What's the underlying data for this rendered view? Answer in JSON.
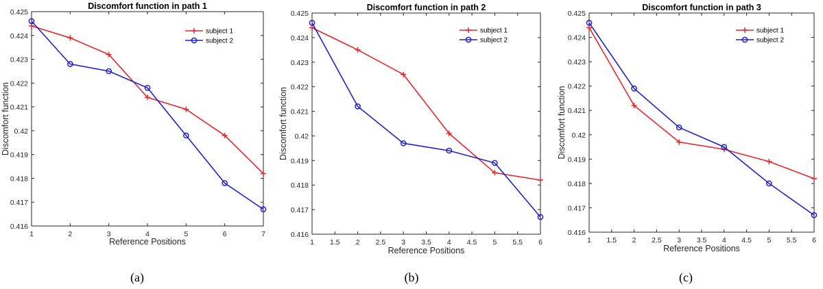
{
  "chart_data": [
    {
      "type": "line",
      "title": "Discomfort function in path 1",
      "xlabel": "Reference Positions",
      "ylabel": "Discomfort function",
      "caption": "(a)",
      "xlim": [
        1,
        7
      ],
      "ylim": [
        0.416,
        0.425
      ],
      "xticks": [
        "1",
        "2",
        "3",
        "4",
        "5",
        "6",
        "7"
      ],
      "yticks": [
        "0.416",
        "0.417",
        "0.418",
        "0.419",
        "0.42",
        "0.421",
        "0.422",
        "0.423",
        "0.424",
        "0.425"
      ],
      "x": [
        1,
        2,
        3,
        4,
        5,
        6,
        7
      ],
      "legend_position": "top-right",
      "series": [
        {
          "name": "subject 1",
          "color": "#e8252b",
          "marker": "plus",
          "values": [
            0.4244,
            0.4239,
            0.4232,
            0.4214,
            0.4209,
            0.4198,
            0.4182
          ]
        },
        {
          "name": "subject 2",
          "color": "#1f1fd0",
          "marker": "circle",
          "values": [
            0.4246,
            0.4228,
            0.4225,
            0.4218,
            0.4198,
            0.4178,
            0.4167
          ]
        }
      ]
    },
    {
      "type": "line",
      "title": "Discomfort function in path 2",
      "xlabel": "Reference Positions",
      "ylabel": "Discomfort function",
      "caption": "(b)",
      "xlim": [
        1,
        6
      ],
      "ylim": [
        0.416,
        0.425
      ],
      "xticks": [
        "1",
        "1.5",
        "2",
        "2.5",
        "3",
        "3.5",
        "4",
        "4.5",
        "5",
        "5.5",
        "6"
      ],
      "yticks": [
        "0.416",
        "0.417",
        "0.418",
        "0.419",
        "0.42",
        "0.421",
        "0.422",
        "0.423",
        "0.424",
        "0.425"
      ],
      "x": [
        1,
        2,
        3,
        4,
        5,
        6
      ],
      "legend_position": "top-right",
      "series": [
        {
          "name": "subject 1",
          "color": "#e8252b",
          "marker": "plus",
          "values": [
            0.4244,
            0.4235,
            0.4225,
            0.4201,
            0.4185,
            0.4182
          ]
        },
        {
          "name": "subject 2",
          "color": "#1f1fd0",
          "marker": "circle",
          "values": [
            0.4246,
            0.4212,
            0.4197,
            0.4194,
            0.4189,
            0.4167
          ]
        }
      ]
    },
    {
      "type": "line",
      "title": "Discomfort function in path 3",
      "xlabel": "Reference Positions",
      "ylabel": "Discomfort function",
      "caption": "(c)",
      "xlim": [
        1,
        6
      ],
      "ylim": [
        0.416,
        0.425
      ],
      "xticks": [
        "1",
        "1.5",
        "2",
        "2.5",
        "3",
        "3.5",
        "4",
        "4.5",
        "5",
        "5.5",
        "6"
      ],
      "yticks": [
        "0.416",
        "0.417",
        "0.418",
        "0.419",
        "0.42",
        "0.421",
        "0.422",
        "0.423",
        "0.424",
        "0.425"
      ],
      "x": [
        1,
        2,
        3,
        4,
        5,
        6
      ],
      "legend_position": "top-right",
      "series": [
        {
          "name": "subject 1",
          "color": "#e8252b",
          "marker": "plus",
          "values": [
            0.4244,
            0.4212,
            0.4197,
            0.4194,
            0.4189,
            0.4182
          ]
        },
        {
          "name": "subject 2",
          "color": "#1f1fd0",
          "marker": "circle",
          "values": [
            0.4246,
            0.4219,
            0.4203,
            0.4195,
            0.418,
            0.4167
          ]
        }
      ]
    }
  ]
}
